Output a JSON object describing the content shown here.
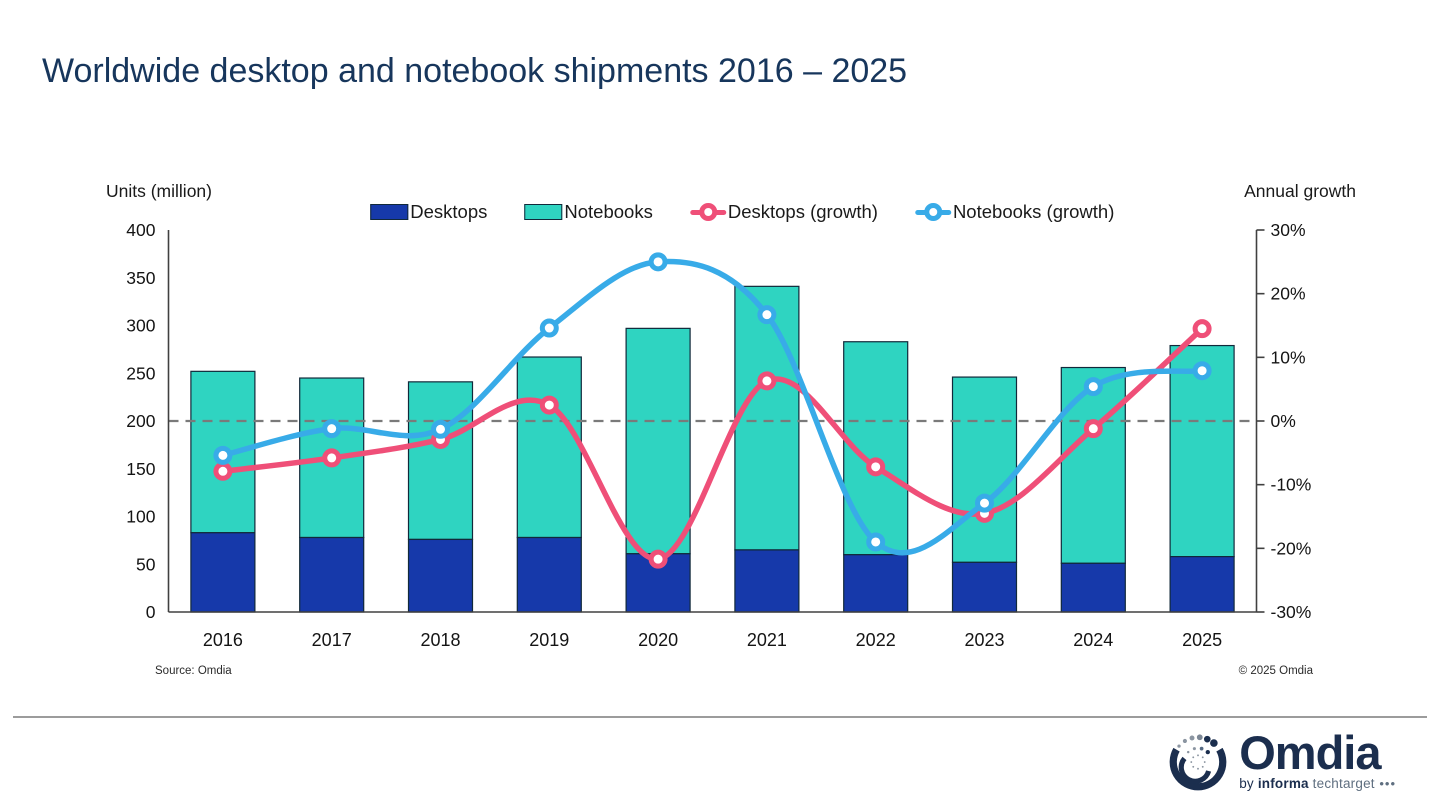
{
  "title": "Worldwide desktop and notebook shipments 2016 – 2025",
  "chart_data": {
    "type": "bar",
    "subtype": "stacked-bar-with-growth-lines",
    "categories": [
      "2016",
      "2017",
      "2018",
      "2019",
      "2020",
      "2021",
      "2022",
      "2023",
      "2024",
      "2025"
    ],
    "bar_series": [
      {
        "name": "Desktops",
        "axis": "left",
        "color": "#1639aa",
        "values": [
          83,
          78,
          76,
          78,
          61,
          65,
          60,
          52,
          51,
          58
        ]
      },
      {
        "name": "Notebooks",
        "axis": "left",
        "color": "#2fd4c1",
        "values": [
          169,
          167,
          165,
          189,
          236,
          276,
          223,
          194,
          205,
          221
        ]
      }
    ],
    "line_series": [
      {
        "name": "Desktops (growth)",
        "axis": "right",
        "color": "#ef4f78",
        "values": [
          -7.9,
          -5.8,
          -2.9,
          2.5,
          -21.7,
          6.3,
          -7.2,
          -14.5,
          -1.2,
          14.5
        ]
      },
      {
        "name": "Notebooks (growth)",
        "axis": "right",
        "color": "#38abe8",
        "values": [
          -5.4,
          -1.2,
          -1.3,
          14.6,
          25.0,
          16.7,
          -19.0,
          -12.9,
          5.4,
          7.9
        ]
      }
    ],
    "left_axis": {
      "title": "Units (million)",
      "min": 0,
      "max": 400,
      "step": 50
    },
    "right_axis": {
      "title": "Annual growth",
      "min": -30,
      "max": 30,
      "step": 10,
      "suffix": "%"
    },
    "zero_line": {
      "value": 0,
      "style": "dashed",
      "color": "#7a7a7a"
    },
    "grid": false,
    "legend_position": "top-center"
  },
  "legend": [
    {
      "label": "Desktops",
      "swatch": "box",
      "color": "#1639aa"
    },
    {
      "label": "Notebooks",
      "swatch": "box",
      "color": "#2fd4c1"
    },
    {
      "label": "Desktops (growth)",
      "swatch": "line",
      "color": "#ef4f78"
    },
    {
      "label": "Notebooks (growth)",
      "swatch": "line",
      "color": "#38abe8"
    }
  ],
  "footer": {
    "source": "Source: Omdia",
    "copyright": "© 2025 Omdia"
  },
  "logo": {
    "brand": "Omdia",
    "by": "by ",
    "informa": "informa",
    "techtarget": " techtarget",
    "dots": " •••"
  },
  "colors": {
    "title_text": "#17365c",
    "axis_line": "#404040",
    "tick_text": "#141414",
    "bar_border": "#11293a",
    "dashed_zero_line": "#7a7a7a",
    "logo_navy": "#1b2e4e",
    "logo_gray": "#8b95a1"
  }
}
